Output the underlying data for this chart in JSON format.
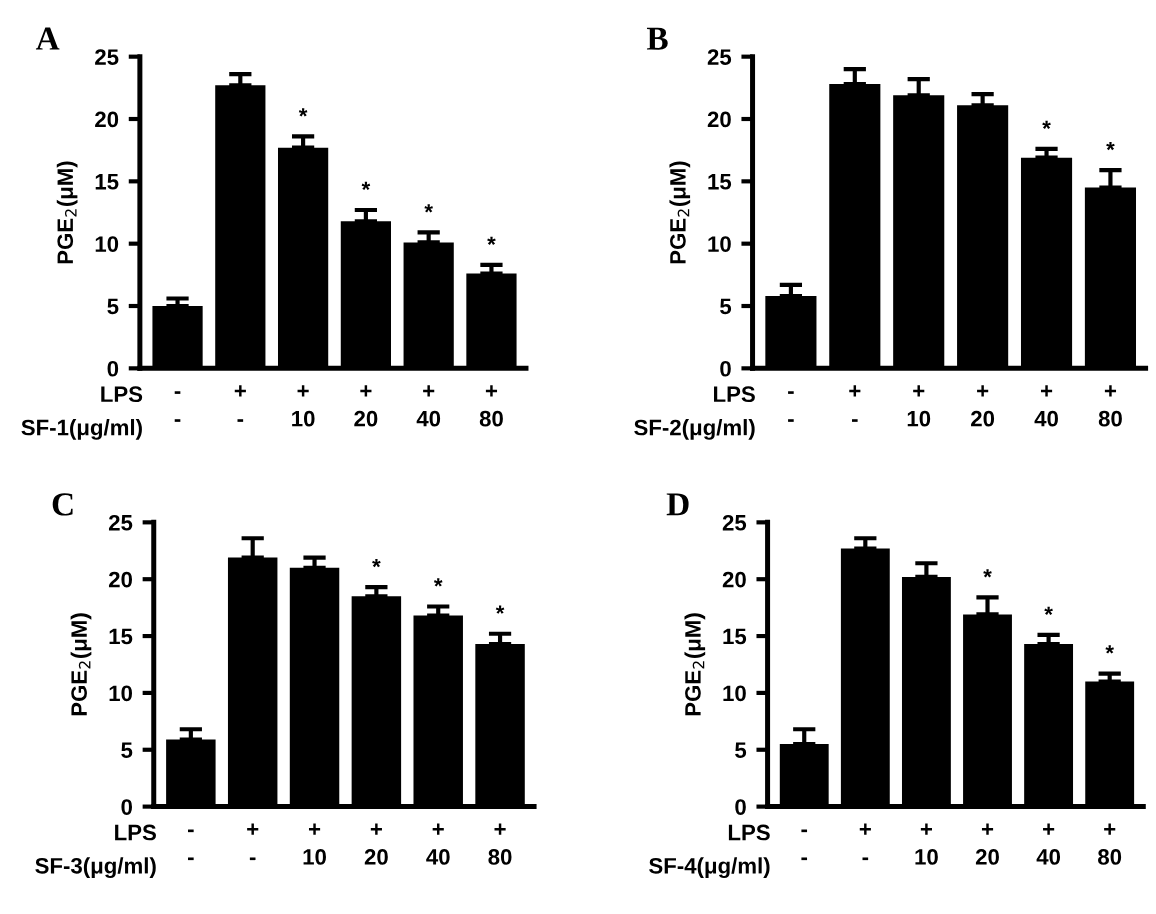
{
  "chart_data": [
    {
      "type": "bar",
      "title": "A",
      "ylabel": "PGE$_{2}$(μM)",
      "categories": [
        "-\n-",
        "+\n-",
        "+\n10",
        "+\n20",
        "+\n40",
        "+\n80"
      ],
      "values": [
        5.0,
        22.7,
        17.7,
        11.8,
        10.1,
        7.6
      ],
      "color": "#000000",
      "errors": [
        [
          5.0,
          5.6
        ],
        [
          22.7,
          23.6
        ],
        [
          17.7,
          18.6
        ],
        [
          11.8,
          12.7
        ],
        [
          10.1,
          10.9
        ],
        [
          7.6,
          8.3
        ]
      ],
      "ylim": [
        0,
        25
      ],
      "yticks": [
        0,
        5,
        10,
        15,
        20,
        25
      ],
      "grid": false,
      "annotations": [
        "LPS",
        "SF-1(μg/ml)",
        {
          "text": "*",
          "x": "+\n10",
          "y": 18.6
        },
        {
          "text": "*",
          "x": "+\n20",
          "y": 12.7
        },
        {
          "text": "*",
          "x": "+\n40",
          "y": 10.9
        },
        {
          "text": "*",
          "x": "+\n80",
          "y": 8.3
        }
      ]
    },
    {
      "type": "bar",
      "title": "B",
      "ylabel": "PGE$_{2}$(μM)",
      "categories": [
        "-\n-",
        "+\n-",
        "+\n10",
        "+\n20",
        "+\n40",
        "+\n80"
      ],
      "values": [
        5.8,
        22.8,
        21.9,
        21.1,
        16.9,
        14.5
      ],
      "color": "#000000",
      "errors": [
        [
          5.8,
          6.7
        ],
        [
          22.8,
          24.0
        ],
        [
          21.9,
          23.2
        ],
        [
          21.1,
          22.0
        ],
        [
          16.9,
          17.6
        ],
        [
          14.5,
          15.9
        ]
      ],
      "ylim": [
        0,
        25
      ],
      "yticks": [
        0,
        5,
        10,
        15,
        20,
        25
      ],
      "grid": false,
      "annotations": [
        "LPS",
        "SF-2(μg/ml)",
        {
          "text": "*",
          "x": "+\n40",
          "y": 17.6
        },
        {
          "text": "*",
          "x": "+\n80",
          "y": 15.9
        }
      ]
    },
    {
      "type": "bar",
      "title": "C",
      "ylabel": "PGE$_{2}$(μM)",
      "categories": [
        "-\n-",
        "+\n-",
        "+\n10",
        "+\n20",
        "+\n40",
        "+\n80"
      ],
      "values": [
        5.9,
        21.9,
        21.0,
        18.5,
        16.8,
        14.3
      ],
      "color": "#000000",
      "errors": [
        [
          5.9,
          6.8
        ],
        [
          21.9,
          23.6
        ],
        [
          21.0,
          21.9
        ],
        [
          18.5,
          19.3
        ],
        [
          16.8,
          17.6
        ],
        [
          14.3,
          15.2
        ]
      ],
      "ylim": [
        0,
        25
      ],
      "yticks": [
        0,
        5,
        10,
        15,
        20,
        25
      ],
      "grid": false,
      "annotations": [
        "LPS",
        "SF-3(μg/ml)",
        {
          "text": "*",
          "x": "+\n20",
          "y": 19.3
        },
        {
          "text": "*",
          "x": "+\n40",
          "y": 17.6
        },
        {
          "text": "*",
          "x": "+\n80",
          "y": 15.2
        }
      ]
    },
    {
      "type": "bar",
      "title": "D",
      "ylabel": "PGE$_{2}$(μM)",
      "categories": [
        "-\n-",
        "+\n-",
        "+\n10",
        "+\n20",
        "+\n40",
        "+\n80"
      ],
      "values": [
        5.5,
        22.7,
        20.2,
        16.9,
        14.3,
        11.0
      ],
      "color": "#000000",
      "errors": [
        [
          5.5,
          6.8
        ],
        [
          22.7,
          23.6
        ],
        [
          20.2,
          21.4
        ],
        [
          16.9,
          18.4
        ],
        [
          14.3,
          15.1
        ],
        [
          11.0,
          11.7
        ]
      ],
      "ylim": [
        0,
        25
      ],
      "yticks": [
        0,
        5,
        10,
        15,
        20,
        25
      ],
      "grid": false,
      "annotations": [
        "LPS",
        "SF-4(μg/ml)",
        {
          "text": "*",
          "x": "+\n20",
          "y": 18.4
        },
        {
          "text": "*",
          "x": "+\n40",
          "y": 15.1
        },
        {
          "text": "*",
          "x": "+\n80",
          "y": 11.7
        }
      ]
    }
  ]
}
